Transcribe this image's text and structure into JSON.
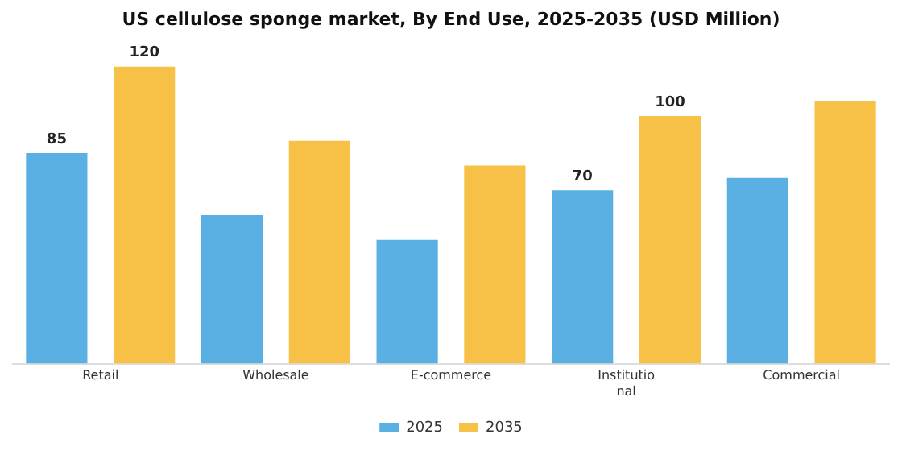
{
  "chart_data": {
    "type": "bar",
    "title": "US cellulose sponge market, By End Use, 2025-2035 (USD Million)",
    "categories": [
      "Retail",
      "Wholesale",
      "E-commerce",
      "Institutional",
      "Commercial"
    ],
    "series": [
      {
        "name": "2025",
        "color": "#5aafe3",
        "values": [
          85,
          60,
          50,
          70,
          75
        ],
        "value_labels": [
          "85",
          null,
          null,
          "70",
          null
        ]
      },
      {
        "name": "2035",
        "color": "#f6c146",
        "values": [
          120,
          90,
          80,
          100,
          106
        ],
        "value_labels": [
          "120",
          null,
          null,
          "100",
          null
        ]
      }
    ],
    "legend": "bottom",
    "grid": false
  }
}
